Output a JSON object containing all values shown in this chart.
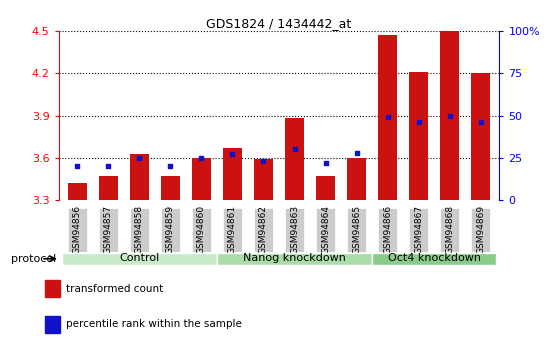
{
  "title": "GDS1824 / 1434442_at",
  "samples": [
    "GSM94856",
    "GSM94857",
    "GSM94858",
    "GSM94859",
    "GSM94860",
    "GSM94861",
    "GSM94862",
    "GSM94863",
    "GSM94864",
    "GSM94865",
    "GSM94866",
    "GSM94867",
    "GSM94868",
    "GSM94869"
  ],
  "groups": [
    {
      "name": "Control",
      "start": 0,
      "end": 5
    },
    {
      "name": "Nanog knockdown",
      "start": 5,
      "end": 10
    },
    {
      "name": "Oct4 knockdown",
      "start": 10,
      "end": 14
    }
  ],
  "group_colors": [
    "#c8eac8",
    "#a8dda8",
    "#88cc88"
  ],
  "transformed_count": [
    3.42,
    3.47,
    3.63,
    3.47,
    3.6,
    3.67,
    3.59,
    3.88,
    3.47,
    3.6,
    4.47,
    4.21,
    4.5,
    4.2
  ],
  "percentile_rank": [
    20,
    20,
    25,
    20,
    25,
    27,
    23,
    30,
    22,
    28,
    49,
    46,
    50,
    46
  ],
  "ylim_left": [
    3.3,
    4.5
  ],
  "ylim_right": [
    0,
    100
  ],
  "yticks_left": [
    3.3,
    3.6,
    3.9,
    4.2,
    4.5
  ],
  "ytick_labels_left": [
    "3.3",
    "3.6",
    "3.9",
    "4.2",
    "4.5"
  ],
  "yticks_right": [
    0,
    25,
    50,
    75,
    100
  ],
  "ytick_labels_right": [
    "0",
    "25",
    "50",
    "75",
    "100%"
  ],
  "bar_color": "#cc1111",
  "percentile_color": "#1111cc",
  "bar_width": 0.6,
  "protocol_label": "protocol",
  "legend_items": [
    {
      "label": "transformed count",
      "color": "#cc1111"
    },
    {
      "label": "percentile rank within the sample",
      "color": "#1111cc"
    }
  ],
  "tick_bg_color": "#cccccc",
  "fig_bg_color": "#ffffff"
}
